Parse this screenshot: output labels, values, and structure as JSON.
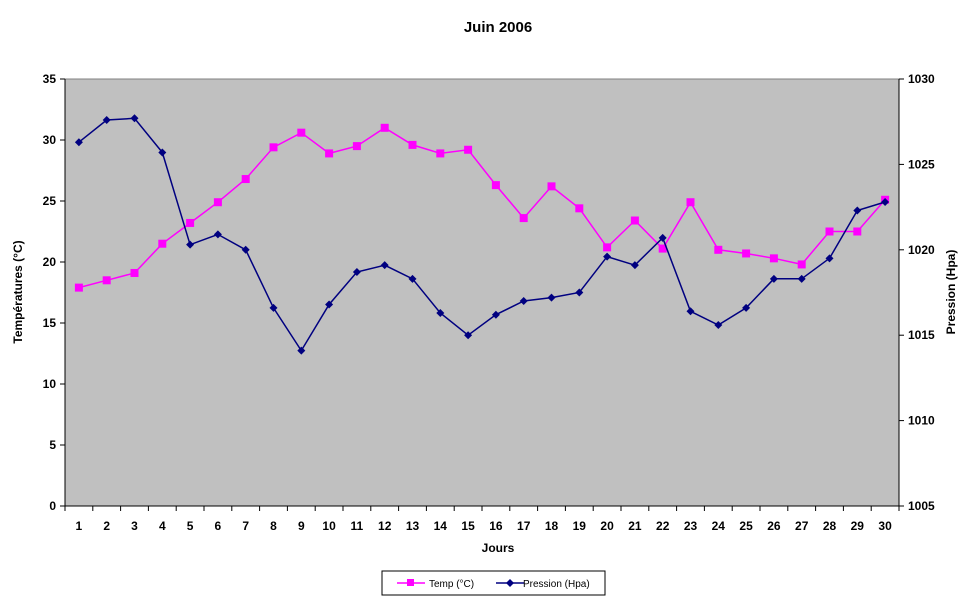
{
  "chart_data": {
    "type": "line",
    "title": "Juin 2006",
    "xlabel": "Jours",
    "ylabel_left": "Températures (°C)",
    "ylabel_right": "Pression (Hpa)",
    "categories": [
      "1",
      "2",
      "3",
      "4",
      "5",
      "6",
      "7",
      "8",
      "9",
      "10",
      "11",
      "12",
      "13",
      "14",
      "15",
      "16",
      "17",
      "18",
      "19",
      "20",
      "21",
      "22",
      "23",
      "24",
      "25",
      "26",
      "27",
      "28",
      "29",
      "30"
    ],
    "y_left": {
      "range": [
        0,
        35
      ],
      "ticks": [
        "0",
        "5",
        "10",
        "15",
        "20",
        "25",
        "30",
        "35"
      ]
    },
    "y_right": {
      "range": [
        1005,
        1030
      ],
      "ticks": [
        "1005",
        "1010",
        "1015",
        "1020",
        "1025",
        "1030"
      ]
    },
    "plot_background": "#c0c0c0",
    "grid": false,
    "legend_position": "bottom",
    "series": [
      {
        "name": "Temp (°C)",
        "axis": "left",
        "color": "#ff00ff",
        "marker": "square",
        "values": [
          17.9,
          18.5,
          19.1,
          21.5,
          23.2,
          24.9,
          26.8,
          29.4,
          30.6,
          28.9,
          29.5,
          31.0,
          29.6,
          28.9,
          29.2,
          26.3,
          23.6,
          26.2,
          24.4,
          21.2,
          23.4,
          21.1,
          24.9,
          21.0,
          20.7,
          20.3,
          19.8,
          22.5,
          22.5,
          25.1
        ]
      },
      {
        "name": "Pression (Hpa)",
        "axis": "right",
        "color": "#000080",
        "marker": "diamond",
        "values": [
          1026.3,
          1027.6,
          1027.7,
          1025.7,
          1020.3,
          1020.9,
          1020.0,
          1016.6,
          1014.1,
          1016.8,
          1018.7,
          1019.1,
          1018.3,
          1016.3,
          1015.0,
          1016.2,
          1017.0,
          1017.2,
          1017.5,
          1019.6,
          1019.1,
          1020.7,
          1016.4,
          1015.6,
          1016.6,
          1018.3,
          1018.3,
          1019.5,
          1022.3,
          1022.8
        ]
      }
    ]
  }
}
